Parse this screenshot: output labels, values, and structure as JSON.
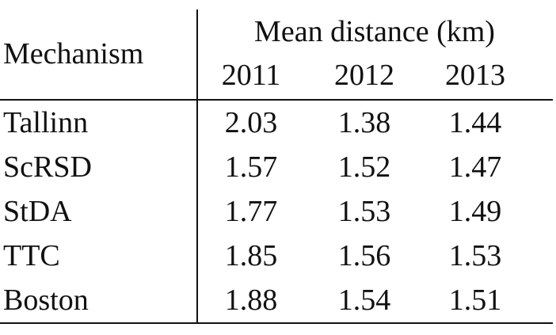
{
  "table": {
    "row_header": "Mechanism",
    "group_header": "Mean distance (km)",
    "columns": [
      "2011",
      "2012",
      "2013"
    ],
    "rows": [
      {
        "label": "Tallinn",
        "values": [
          "2.03",
          "1.38",
          "1.44"
        ]
      },
      {
        "label": "ScRSD",
        "values": [
          "1.57",
          "1.52",
          "1.47"
        ]
      },
      {
        "label": "StDA",
        "values": [
          "1.77",
          "1.53",
          "1.49"
        ]
      },
      {
        "label": "TTC",
        "values": [
          "1.85",
          "1.56",
          "1.53"
        ]
      },
      {
        "label": "Boston",
        "values": [
          "1.88",
          "1.54",
          "1.51"
        ]
      }
    ]
  }
}
